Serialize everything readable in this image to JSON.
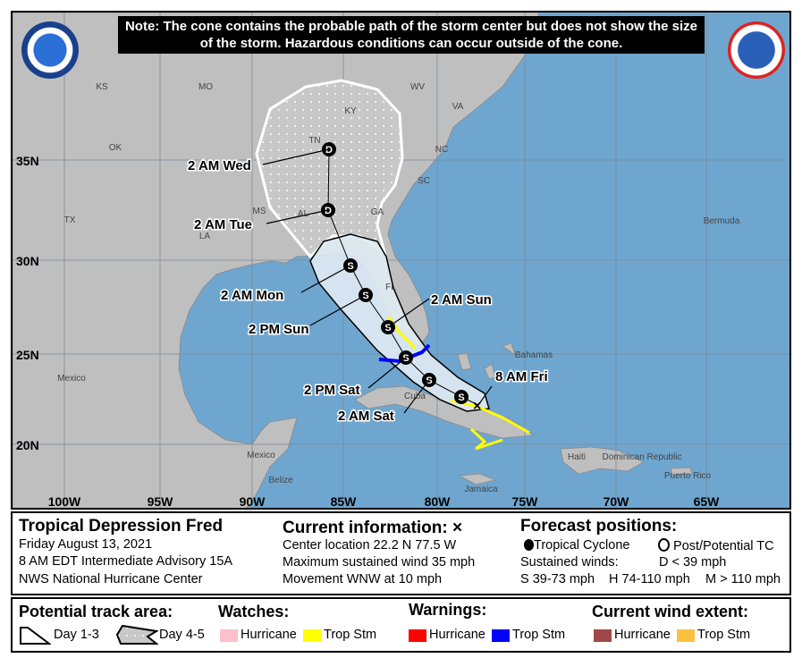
{
  "note": "Note: The cone contains the probable path of the storm center but does not show the size of the storm. Hazardous conditions can occur outside of the cone.",
  "logos": {
    "left": "NOAA",
    "right": "NATIONAL WEATHER SERVICE"
  },
  "map": {
    "lat_labels": [
      "35N",
      "30N",
      "25N",
      "20N"
    ],
    "lon_labels": [
      "100W",
      "95W",
      "90W",
      "85W",
      "80W",
      "75W",
      "70W",
      "65W"
    ],
    "place_labels": [
      "KS",
      "MO",
      "KY",
      "WV",
      "VA",
      "OK",
      "TN",
      "NC",
      "SC",
      "MS",
      "AL",
      "GA",
      "TX",
      "LA",
      "FL",
      "Bermuda",
      "Bahamas",
      "Mexico",
      "Mexico",
      "Cuba",
      "Haiti",
      "Dominican Republic",
      "Jamaica",
      "Puerto Rico",
      "Belize"
    ],
    "forecast_points": [
      {
        "label": "2 AM Wed",
        "symbol": "D"
      },
      {
        "label": "2 AM Tue",
        "symbol": "D"
      },
      {
        "label": "2 AM Mon",
        "symbol": "S"
      },
      {
        "label": "2 PM Sun",
        "symbol": "S"
      },
      {
        "label": "2 AM Sun",
        "symbol": "S"
      },
      {
        "label": "2 PM Sat",
        "symbol": "S"
      },
      {
        "label": "2 AM Sat",
        "symbol": "S"
      },
      {
        "label": "8 AM Fri",
        "symbol": "x"
      }
    ]
  },
  "info": {
    "storm_name": "Tropical Depression Fred",
    "date": "Friday August 13, 2021",
    "advisory": "8 AM EDT Intermediate Advisory 15A",
    "center": "NWS National Hurricane Center",
    "current_title": "Current information: ×",
    "location": "Center location 22.2 N 77.5 W",
    "max_wind": "Maximum sustained wind 35 mph",
    "movement": "Movement WNW at 10 mph",
    "forecast_title": "Forecast positions:",
    "tropical_cyclone": "Tropical Cyclone",
    "post_potential": "Post/Potential TC",
    "sustained": "Sustained winds:",
    "d_range": "D < 39 mph",
    "s_range": "S 39-73 mph",
    "h_range": "H 74-110 mph",
    "m_range": "M > 110 mph"
  },
  "legend": {
    "track_title": "Potential track area:",
    "day13": "Day 1-3",
    "day45": "Day 4-5",
    "watches_title": "Watches:",
    "warnings_title": "Warnings:",
    "wind_title": "Current wind extent:",
    "hurricane": "Hurricane",
    "tropstm": "Trop Stm",
    "colors": {
      "hurricane_watch": "#ffc0cb",
      "ts_watch": "#ffff00",
      "hurricane_warning": "#ff0000",
      "ts_warning": "#0000ff",
      "hurricane_wind": "#a04848",
      "ts_wind": "#ffbf40"
    }
  }
}
